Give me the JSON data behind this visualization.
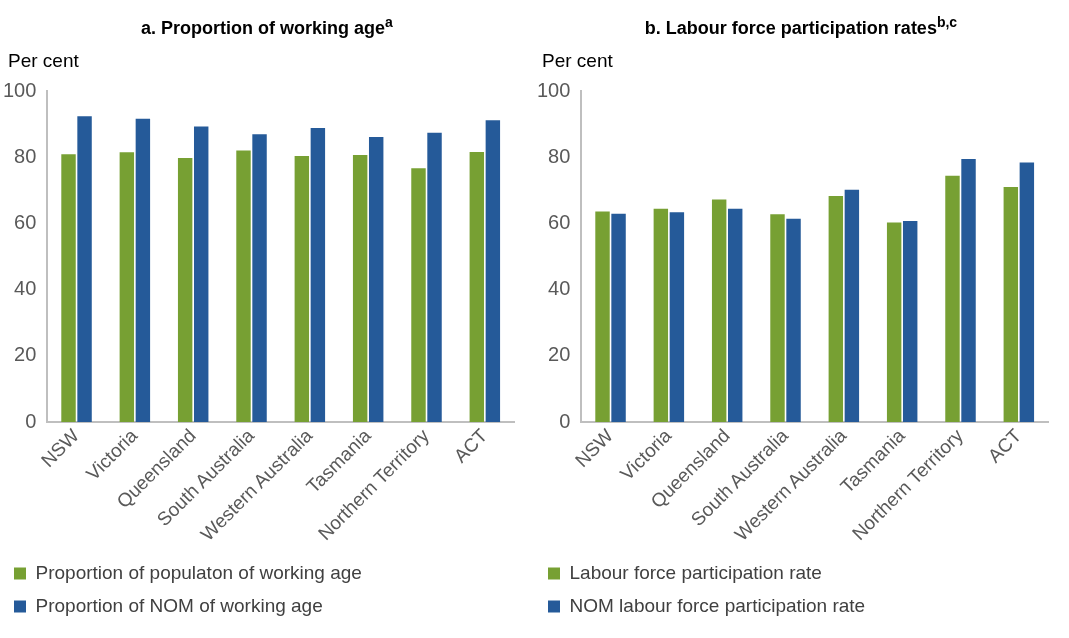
{
  "chart_data": [
    {
      "type": "bar",
      "title": "a.  Proportion of working age$^{a}$",
      "ylabel": "Per cent",
      "categories": [
        "NSW",
        "Victoria",
        "Queensland",
        "South Australia",
        "Western Australia",
        "Tasmania",
        "Northern Territory",
        "ACT"
      ],
      "series": [
        {
          "name": "Proportion of populaton of working age",
          "color": "#77a033",
          "values": [
            80.9,
            81.5,
            79.8,
            82.0,
            80.4,
            80.7,
            76.7,
            81.6
          ]
        },
        {
          "name": "Proportion of NOM of working age",
          "color": "#255a99",
          "values": [
            92.4,
            91.6,
            89.3,
            86.9,
            88.8,
            86.1,
            87.4,
            91.2
          ]
        }
      ],
      "ylim": [
        0,
        100
      ],
      "yticks": [
        0,
        20,
        40,
        60,
        80,
        100
      ],
      "grid": false,
      "legend": "bottom"
    },
    {
      "type": "bar",
      "title": "b.  Labour force participation rates$^{b,c}$",
      "ylabel": "Per cent",
      "categories": [
        "NSW",
        "Victoria",
        "Queensland",
        "South Australia",
        "Western Australia",
        "Tasmania",
        "Northern Territory",
        "ACT"
      ],
      "series": [
        {
          "name": "Labour force participation rate",
          "color": "#77a033",
          "values": [
            63.6,
            64.4,
            67.2,
            62.8,
            68.3,
            60.3,
            74.4,
            71.0
          ]
        },
        {
          "name": "NOM labour force participation rate",
          "color": "#255a99",
          "values": [
            62.9,
            63.4,
            64.4,
            61.4,
            70.2,
            60.7,
            79.5,
            78.4
          ]
        }
      ],
      "ylim": [
        0,
        100
      ],
      "yticks": [
        0,
        20,
        40,
        60,
        80,
        100
      ],
      "grid": false,
      "legend": "bottom"
    }
  ]
}
